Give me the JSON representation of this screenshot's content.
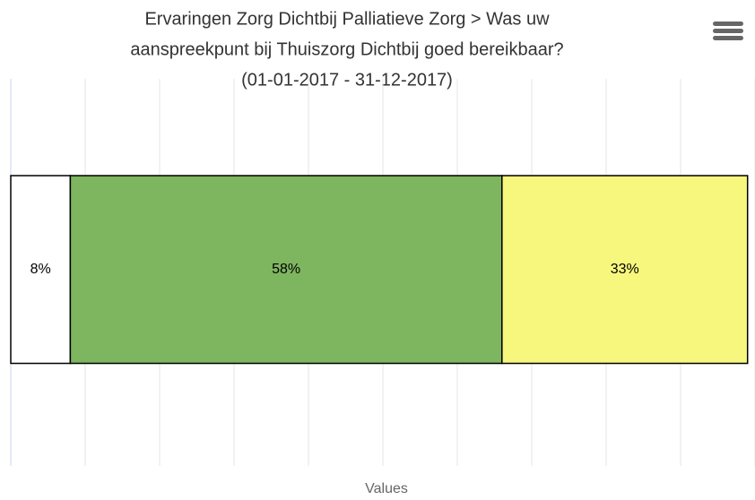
{
  "chart_data": {
    "type": "stacked-bar-horizontal",
    "title": [
      "Ervaringen Zorg Dichtbij Palliatieve Zorg > Was uw",
      "aanspreekpunt bij Thuiszorg Dichtbij goed bereikbaar?",
      "(01-01-2017 - 31-12-2017)"
    ],
    "x_label": "Values",
    "categories": [
      null
    ],
    "series": [
      {
        "color": "#ffffff",
        "values": [
          8
        ],
        "value_labels": [
          "8%"
        ]
      },
      {
        "color": "#7eb55f",
        "values": [
          58
        ],
        "value_labels": [
          "58%"
        ]
      },
      {
        "color": "#f7f77e",
        "values": [
          33
        ],
        "value_labels": [
          "33%"
        ]
      }
    ],
    "xlim": [
      0,
      100
    ],
    "xticks": [
      0,
      10,
      20,
      30,
      40,
      50,
      60,
      70,
      80,
      90,
      100
    ],
    "grid": true
  }
}
